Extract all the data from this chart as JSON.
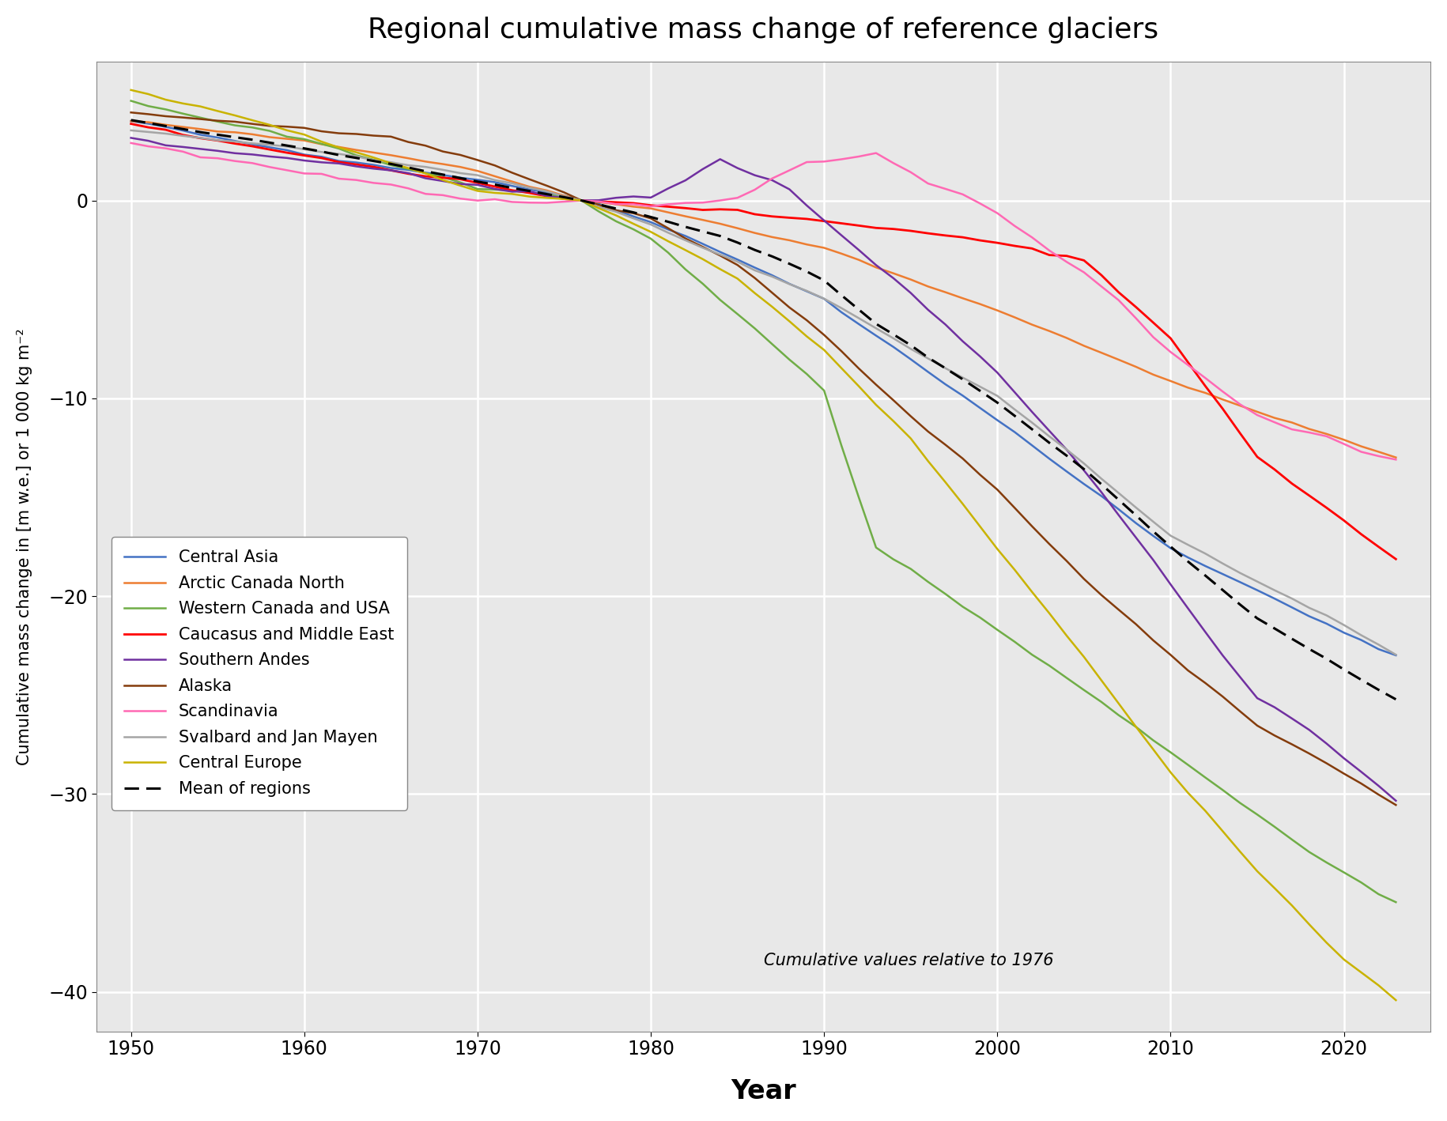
{
  "title": "Regional cumulative mass change of reference glaciers",
  "xlabel": "Year",
  "ylabel": "Cumulative mass change in [m w.e.] or 1 000 kg m⁻²",
  "xlim": [
    1948,
    2025
  ],
  "ylim": [
    -42,
    7
  ],
  "yticks": [
    0,
    -10,
    -20,
    -30,
    -40
  ],
  "xticks": [
    1950,
    1960,
    1970,
    1980,
    1990,
    2000,
    2010,
    2020
  ],
  "annotation": "Cumulative values relative to 1976",
  "background_color": "#e8e8e8",
  "grid_color": "#ffffff",
  "series": {
    "Central Asia": {
      "color": "#4472C4",
      "lw": 1.8
    },
    "Arctic Canada North": {
      "color": "#ED7D31",
      "lw": 1.8
    },
    "Western Canada and USA": {
      "color": "#70AD47",
      "lw": 1.8
    },
    "Caucasus and Middle East": {
      "color": "#FF0000",
      "lw": 2.0
    },
    "Southern Andes": {
      "color": "#7030A0",
      "lw": 1.8
    },
    "Alaska": {
      "color": "#843C0C",
      "lw": 1.8
    },
    "Scandinavia": {
      "color": "#FF69B4",
      "lw": 1.8
    },
    "Svalbard and Jan Mayen": {
      "color": "#A5A5A5",
      "lw": 1.8
    },
    "Central Europe": {
      "color": "#C9B300",
      "lw": 1.8
    },
    "Mean of regions": {
      "color": "#000000",
      "lw": 2.2,
      "dashes": [
        6,
        3
      ]
    }
  }
}
